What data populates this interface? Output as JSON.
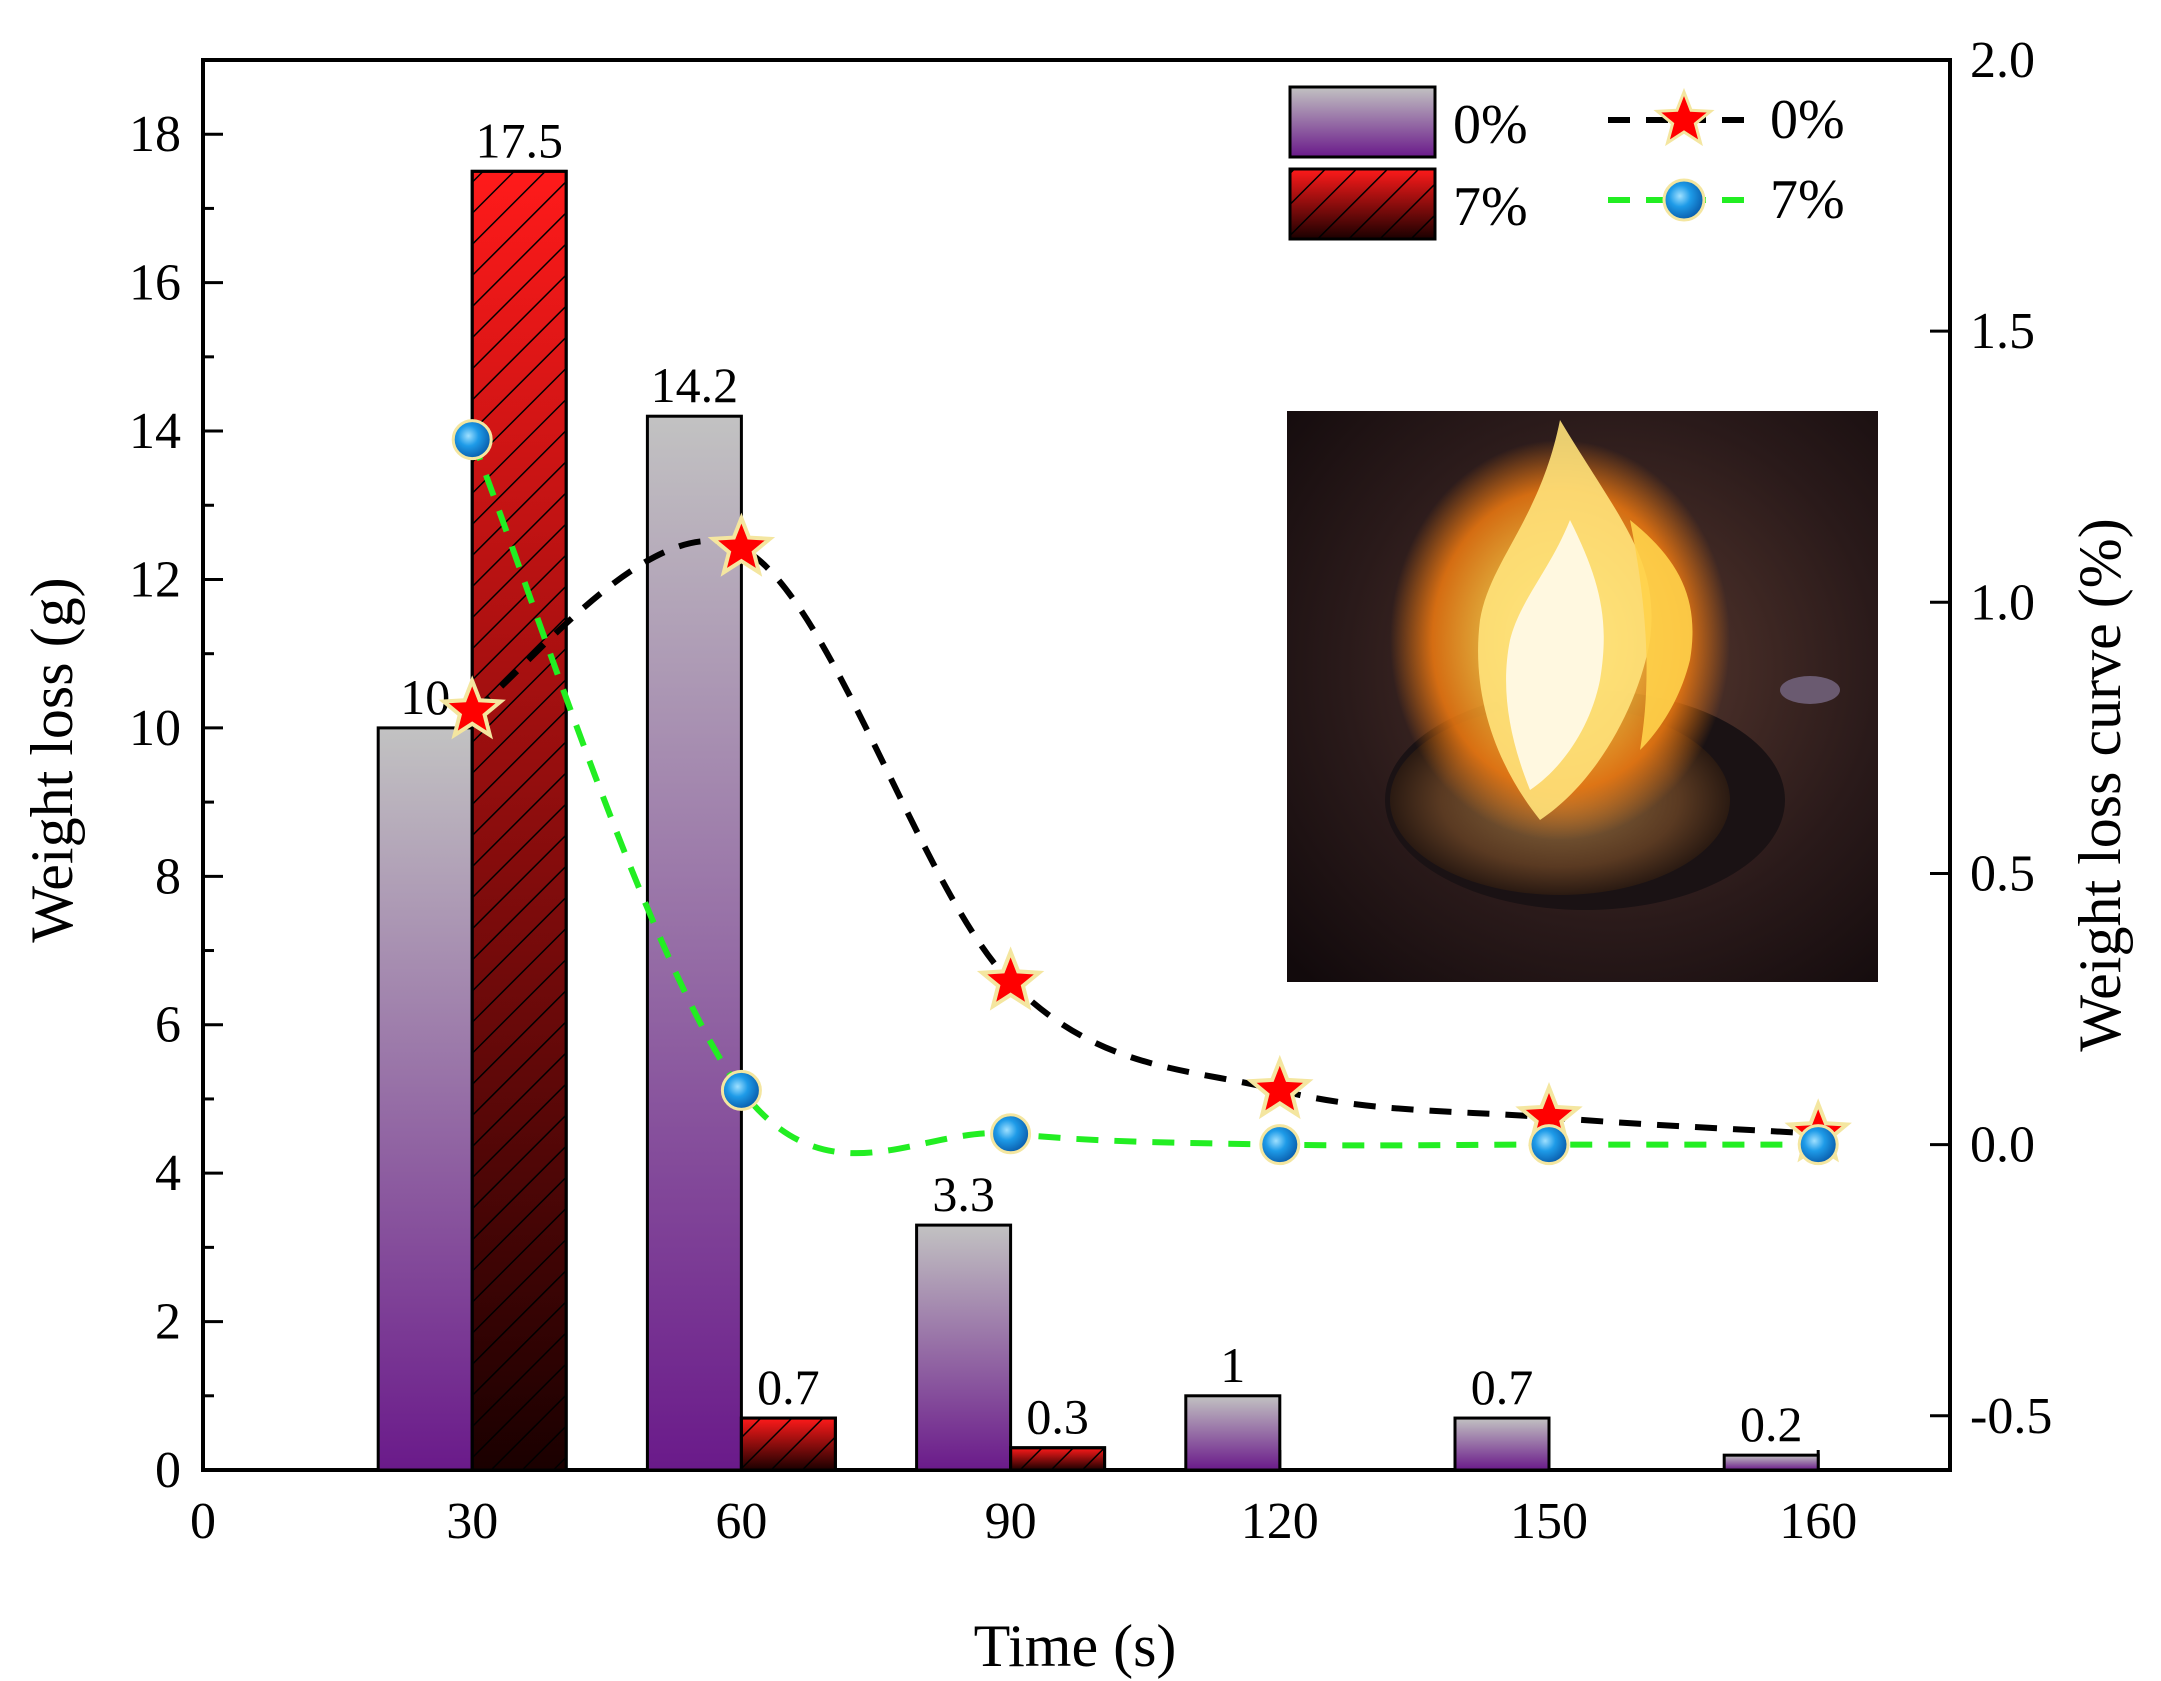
{
  "chart_data": {
    "type": "bar",
    "xlabel": "Time (s)",
    "ylabel": "Weight loss (g)",
    "y2label": "Weight loss curve (%)",
    "x_ticks": [
      "0",
      "30",
      "60",
      "90",
      "120",
      "150",
      "160"
    ],
    "categories": [
      "30",
      "60",
      "90",
      "120",
      "150",
      "160"
    ],
    "ylim": [
      0,
      19
    ],
    "y_ticks": [
      0,
      2,
      4,
      6,
      8,
      10,
      12,
      14,
      16,
      18
    ],
    "y2lim": [
      -0.6,
      2.0
    ],
    "y2_ticks": [
      "-0.5",
      "0.0",
      "0.5",
      "1.0",
      "1.5",
      "2.0"
    ],
    "bar_series": [
      {
        "name": "0%",
        "values": [
          10,
          14.2,
          3.3,
          1,
          0.7,
          0.2
        ],
        "labels": [
          "10",
          "14.2",
          "3.3",
          "1",
          "0.7",
          "0.2"
        ],
        "color_top": "#c2c2c2",
        "color_bottom": "#6a1a8a"
      },
      {
        "name": "7%",
        "values": [
          17.5,
          0.7,
          0.3,
          null,
          null,
          null
        ],
        "labels": [
          "17.5",
          "0.7",
          "0.3",
          "",
          "",
          ""
        ],
        "color_top": "#ff1a1a",
        "color_bottom": "#1a0000"
      }
    ],
    "line_series": [
      {
        "name": "0%",
        "values": [
          0.8,
          1.1,
          0.3,
          0.1,
          0.05,
          0.02
        ],
        "line_color": "#000000",
        "marker": "star",
        "marker_color": "#ff0000"
      },
      {
        "name": "7%",
        "values": [
          1.3,
          0.1,
          0.02,
          0.0,
          0.0,
          0.0
        ],
        "line_color": "#22ee22",
        "marker": "circle",
        "marker_color": "#1e9be8"
      }
    ],
    "legend": {
      "bars": [
        "0%",
        "7%"
      ],
      "lines": [
        "0%",
        "7%"
      ],
      "position": "top-right"
    },
    "inset": "photo of burning sample in a dish"
  }
}
